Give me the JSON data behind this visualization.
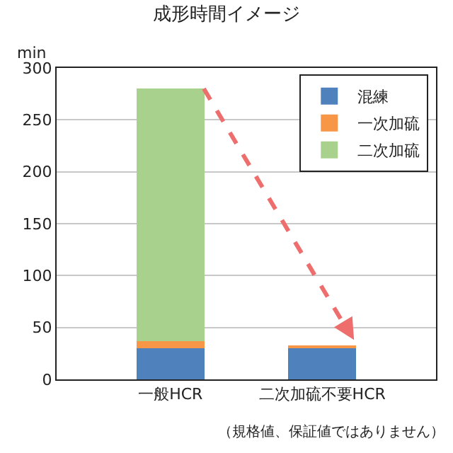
{
  "chart_data": {
    "type": "bar",
    "title": "成形時間イメージ",
    "ylabel": "min",
    "categories": [
      "一般HCR",
      "二次加硫不要HCR"
    ],
    "stacked": true,
    "series": [
      {
        "name": "混練",
        "color": "#4f81bd",
        "values": [
          30,
          30
        ]
      },
      {
        "name": "一次加硫",
        "color": "#f79646",
        "values": [
          7,
          2
        ]
      },
      {
        "name": "二次加硫",
        "color": "#a9d18e",
        "values": [
          243,
          0
        ]
      }
    ],
    "ylim": [
      0,
      300
    ],
    "yticks": [
      0,
      50,
      100,
      150,
      200,
      250,
      300
    ],
    "grid": "y",
    "legend": "top right",
    "annotations": [
      "（規格値、保証値ではありません）"
    ]
  }
}
